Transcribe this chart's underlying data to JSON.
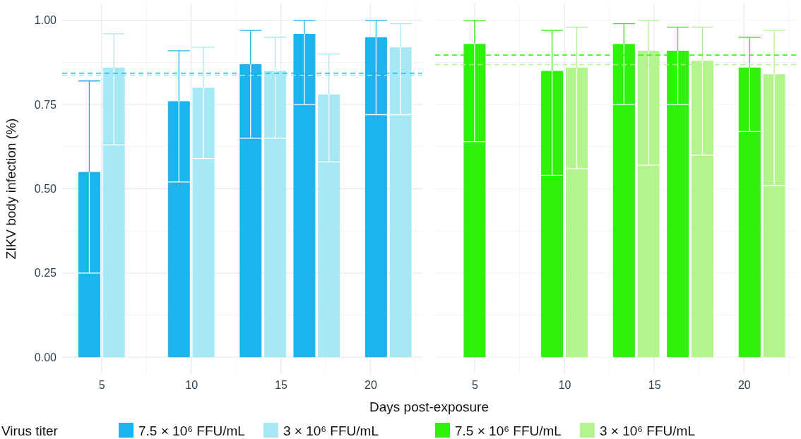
{
  "chart_data": [
    {
      "type": "bar",
      "xlabel": "Days post-exposure",
      "ylabel": "ZIKV body infection (%)",
      "legend_title": "Virus titer",
      "legend": "bottom",
      "grid": true,
      "x": [
        5,
        10,
        14,
        17,
        21
      ],
      "xlim": [
        2.8,
        22.9
      ],
      "xticks": [
        5,
        {
          "value": 7.5,
          "label": null
        },
        10,
        {
          "value": 12.5,
          "label": null
        },
        15,
        {
          "value": 17.5,
          "label": null
        },
        20,
        {
          "value": 22.5,
          "label": null
        }
      ],
      "ylim": [
        -0.05,
        1.05
      ],
      "yticks": [
        {
          "value": 0,
          "label": "0.00"
        },
        {
          "value": 0.125,
          "label": null
        },
        {
          "value": 0.25,
          "label": "0.25"
        },
        {
          "value": 0.375,
          "label": null
        },
        {
          "value": 0.5,
          "label": "0.50"
        },
        {
          "value": 0.625,
          "label": null
        },
        {
          "value": 0.75,
          "label": "0.75"
        },
        {
          "value": 0.875,
          "label": null
        },
        {
          "value": 1,
          "label": "1.00"
        }
      ],
      "series": [
        {
          "name": "7.5 × 10⁶ FFU/mL",
          "color": "#1cb4ef",
          "values": [
            0.55,
            0.76,
            0.87,
            0.96,
            0.95
          ],
          "errors": [
            [
              0.25,
              0.82
            ],
            [
              0.52,
              0.91
            ],
            [
              0.65,
              0.97
            ],
            [
              0.75,
              1.0
            ],
            [
              0.72,
              1.0
            ]
          ]
        },
        {
          "name": "3 × 10⁶ FFU/mL",
          "color": "#a6e8f4",
          "values": [
            0.86,
            0.8,
            0.85,
            0.78,
            0.92
          ],
          "errors": [
            [
              0.63,
              0.96
            ],
            [
              0.59,
              0.92
            ],
            [
              0.65,
              0.95
            ],
            [
              0.58,
              0.9
            ],
            [
              0.72,
              0.99
            ]
          ]
        }
      ],
      "ref_lines": [
        {
          "axis": "y",
          "value": 0.843,
          "color": "#1cb4ef",
          "line_style": "dashed"
        },
        {
          "axis": "y",
          "value": 0.837,
          "color": "#a6e8f4",
          "line_style": "dashed"
        }
      ]
    },
    {
      "type": "bar",
      "legend": "bottom",
      "grid": true,
      "tick_labels": "x",
      "x": [
        5,
        10,
        14,
        17,
        21
      ],
      "xlim": [
        2.8,
        22.9
      ],
      "xticks": [
        5,
        {
          "value": 7.5,
          "label": null
        },
        10,
        {
          "value": 12.5,
          "label": null
        },
        15,
        {
          "value": 17.5,
          "label": null
        },
        20,
        {
          "value": 22.5,
          "label": null
        }
      ],
      "ylim": [
        -0.05,
        1.05
      ],
      "yticks": [
        {
          "value": 0,
          "label": null
        },
        {
          "value": 0.125,
          "label": null
        },
        {
          "value": 0.25,
          "label": null
        },
        {
          "value": 0.375,
          "label": null
        },
        {
          "value": 0.5,
          "label": null
        },
        {
          "value": 0.625,
          "label": null
        },
        {
          "value": 0.75,
          "label": null
        },
        {
          "value": 0.875,
          "label": null
        },
        {
          "value": 1,
          "label": null
        }
      ],
      "series": [
        {
          "name": "7.5 × 10⁶ FFU/mL",
          "color": "#2ef20a",
          "values": [
            0.93,
            0.85,
            0.93,
            0.91,
            0.86
          ],
          "errors": [
            [
              0.64,
              1.0
            ],
            [
              0.54,
              0.97
            ],
            [
              0.75,
              0.99
            ],
            [
              0.75,
              0.98
            ],
            [
              0.67,
              0.95
            ]
          ]
        },
        {
          "name": "3 × 10⁶ FFU/mL",
          "color": "#b3f58c",
          "values": [
            null,
            0.86,
            0.91,
            0.88,
            0.84
          ],
          "errors": [
            null,
            [
              0.56,
              0.98
            ],
            [
              0.57,
              1.0
            ],
            [
              0.6,
              0.98
            ],
            [
              0.51,
              0.97
            ]
          ]
        }
      ],
      "ref_lines": [
        {
          "axis": "y",
          "value": 0.897,
          "color": "#2ef20a",
          "line_style": "dashed"
        },
        {
          "axis": "y",
          "value": 0.869,
          "color": "#b3f58c",
          "line_style": "dashed"
        }
      ]
    }
  ]
}
